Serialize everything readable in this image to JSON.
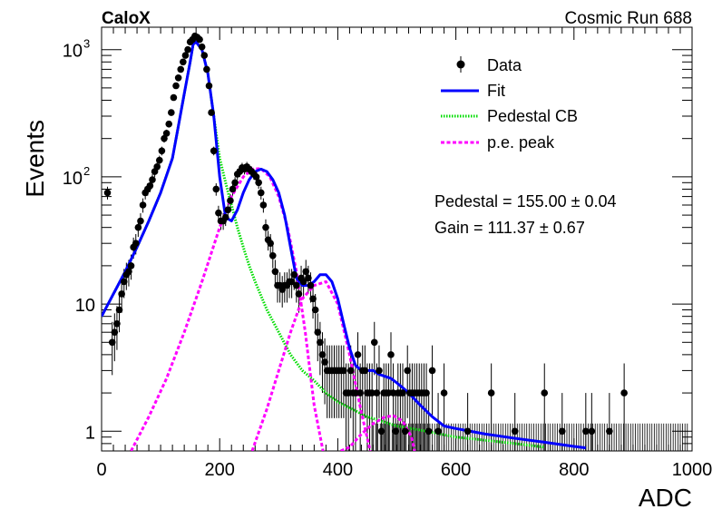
{
  "chart_data": {
    "type": "scatter",
    "header_left": "CaloX",
    "header_right": "Cosmic Run 688",
    "xlabel": "ADC",
    "ylabel": "Events",
    "xlim": [
      0,
      1000
    ],
    "ylim": [
      0.7,
      1500
    ],
    "yscale": "log",
    "x_ticks": [
      "0",
      "200",
      "400",
      "600",
      "800",
      "1000"
    ],
    "y_ticks": [
      {
        "value": 1,
        "label": "1"
      },
      {
        "value": 10,
        "label": "10"
      },
      {
        "value": 100,
        "base": "10",
        "exp": "2"
      },
      {
        "value": 1000,
        "base": "10",
        "exp": "3"
      }
    ],
    "legend": [
      {
        "label": "Data",
        "kind": "marker"
      },
      {
        "label": "Fit",
        "kind": "line",
        "color": "#0000ff"
      },
      {
        "label": "Pedestal CB",
        "kind": "dots",
        "color": "#00dd00"
      },
      {
        "label": "p.e. peak",
        "kind": "dash",
        "color": "#ff00ff"
      }
    ],
    "annotations": [
      "Pedestal = 155.00 ± 0.04",
      "Gain = 111.37 ± 0.67"
    ],
    "colors": {
      "data": "#000000",
      "fit": "#0000ff",
      "pedestal": "#00dd00",
      "pe_peak": "#ff00ff"
    },
    "series": [
      {
        "kind": "data",
        "x": [
          10,
          18,
          22,
          26,
          30,
          34,
          38,
          42,
          46,
          50,
          54,
          58,
          62,
          66,
          70,
          74,
          78,
          82,
          86,
          90,
          94,
          98,
          102,
          106,
          110,
          114,
          118,
          122,
          126,
          130,
          134,
          138,
          142,
          146,
          150,
          154,
          158,
          162,
          166,
          170,
          174,
          178,
          182,
          186,
          190,
          194,
          198,
          202,
          206,
          210,
          214,
          218,
          222,
          226,
          230,
          234,
          238,
          242,
          246,
          250,
          254,
          258,
          262,
          266,
          270,
          274,
          278,
          282,
          286,
          290,
          294,
          298,
          302,
          306,
          310,
          314,
          318,
          322,
          326,
          330,
          334,
          338,
          342,
          346,
          350,
          354,
          358,
          362,
          366,
          370,
          374,
          378,
          382,
          386,
          390,
          394,
          398,
          402,
          406,
          410,
          414,
          418,
          422,
          426,
          430,
          434,
          438,
          442,
          446,
          450,
          454,
          458,
          462,
          466,
          470,
          474,
          478,
          482,
          486,
          490,
          494,
          498,
          502,
          506,
          510,
          514,
          518,
          522,
          526,
          530,
          534,
          538,
          542,
          546,
          550,
          554,
          560,
          570,
          580,
          620,
          660,
          700,
          750,
          780,
          820,
          830,
          860,
          885
        ],
        "y": [
          75,
          5,
          6,
          7,
          9,
          12,
          15,
          17,
          18,
          20,
          28,
          30,
          40,
          45,
          60,
          75,
          80,
          85,
          95,
          110,
          120,
          135,
          160,
          200,
          220,
          260,
          320,
          420,
          520,
          600,
          700,
          800,
          900,
          1000,
          1150,
          1200,
          1280,
          1250,
          1200,
          1050,
          900,
          700,
          520,
          320,
          160,
          80,
          52,
          45,
          45,
          48,
          55,
          65,
          80,
          90,
          105,
          110,
          118,
          115,
          120,
          115,
          110,
          105,
          100,
          90,
          75,
          60,
          40,
          32,
          30,
          24,
          18,
          14,
          14,
          13,
          14,
          14,
          15,
          15,
          17,
          14,
          12,
          16,
          15,
          18,
          16,
          14,
          11,
          9,
          6,
          5,
          4,
          3.5,
          3,
          3,
          3,
          3,
          3,
          3,
          3,
          3,
          2,
          2,
          3,
          2,
          2,
          4,
          2,
          3,
          3,
          2,
          2,
          2,
          5,
          2,
          3,
          1,
          2,
          2,
          2,
          4,
          2,
          1,
          2,
          2,
          2,
          1,
          3,
          2,
          2,
          2,
          2,
          2,
          2,
          2,
          2,
          1,
          3,
          1,
          2,
          1,
          2,
          1,
          2,
          1,
          1,
          1,
          1,
          2
        ]
      },
      {
        "kind": "fit",
        "x": [
          0,
          20,
          40,
          60,
          80,
          100,
          120,
          130,
          140,
          150,
          155,
          160,
          170,
          180,
          190,
          200,
          210,
          220,
          230,
          240,
          250,
          260,
          270,
          280,
          290,
          300,
          310,
          320,
          330,
          340,
          350,
          360,
          370,
          380,
          390,
          400,
          410,
          420,
          430,
          440,
          450,
          460,
          470,
          480,
          490,
          500,
          510,
          520,
          540,
          560,
          580,
          600,
          650,
          700,
          750,
          800,
          820
        ],
        "y": [
          8,
          12,
          18,
          28,
          45,
          75,
          140,
          250,
          450,
          800,
          1100,
          1150,
          1000,
          650,
          300,
          100,
          48,
          45,
          55,
          75,
          95,
          110,
          115,
          110,
          95,
          75,
          50,
          28,
          16,
          14,
          14,
          15,
          17,
          17,
          15,
          11,
          7,
          4.5,
          3.3,
          3,
          3,
          3,
          2.8,
          2.7,
          2.6,
          2.4,
          2.2,
          2.0,
          1.6,
          1.3,
          1.1,
          1.05,
          0.95,
          0.88,
          0.82,
          0.76,
          0.74
        ]
      },
      {
        "kind": "pedestal",
        "x": [
          0,
          20,
          40,
          60,
          80,
          100,
          120,
          130,
          140,
          150,
          155,
          160,
          170,
          180,
          190,
          200,
          210,
          220,
          230,
          240,
          250,
          260,
          280,
          300,
          320,
          340,
          360,
          380,
          400,
          450,
          500,
          550,
          600,
          650,
          700,
          750
        ],
        "y": [
          8,
          12,
          18,
          28,
          45,
          75,
          140,
          250,
          450,
          800,
          1100,
          1150,
          1000,
          650,
          300,
          140,
          90,
          60,
          40,
          28,
          20,
          15,
          9,
          6,
          4,
          3,
          2.5,
          2,
          1.7,
          1.3,
          1.1,
          1.0,
          0.9,
          0.85,
          0.8,
          0.75
        ]
      },
      {
        "kind": "pe_peak",
        "x": [
          50,
          80,
          110,
          140,
          170,
          200,
          220,
          240,
          255,
          270,
          285,
          300,
          315,
          330,
          345,
          360,
          375
        ],
        "y": [
          0.7,
          1.3,
          2.6,
          6,
          15,
          40,
          70,
          100,
          115,
          116,
          100,
          70,
          40,
          18,
          6,
          1.6,
          0.7
        ]
      },
      {
        "kind": "pe_peak",
        "x": [
          255,
          280,
          300,
          320,
          340,
          360,
          380,
          400,
          420,
          440,
          455
        ],
        "y": [
          0.7,
          1.5,
          3,
          6,
          11,
          14,
          15,
          10,
          4,
          1.4,
          0.7
        ]
      },
      {
        "kind": "pe_peak",
        "x": [
          405,
          420,
          440,
          460,
          480,
          495,
          510,
          525,
          530
        ],
        "y": [
          0.7,
          0.75,
          0.95,
          1.15,
          1.3,
          1.32,
          1.2,
          0.9,
          0.7
        ]
      }
    ]
  }
}
